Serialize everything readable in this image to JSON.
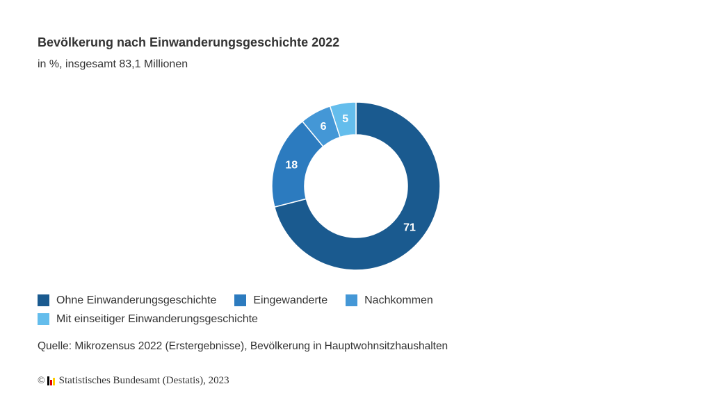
{
  "header": {
    "title": "Bevölkerung nach Einwanderungsgeschichte 2022",
    "subtitle": "in %, insgesamt 83,1 Millionen"
  },
  "chart_data": {
    "type": "pie",
    "title": "Bevölkerung nach Einwanderungsgeschichte 2022",
    "subtitle": "in %, insgesamt 83,1 Millionen",
    "donut": true,
    "legend_position": "bottom-left",
    "slices": [
      {
        "label": "Ohne Einwanderungsgeschichte",
        "value": 71,
        "value_label": "71",
        "color": "#1a5a8f"
      },
      {
        "label": "Eingewanderte",
        "value": 18,
        "value_label": "18",
        "color": "#2c7bbf"
      },
      {
        "label": "Nachkommen",
        "value": 6,
        "value_label": "6",
        "color": "#4497d6"
      },
      {
        "label": "Mit einseitiger Einwanderungsgeschichte",
        "value": 5,
        "value_label": "5",
        "color": "#64bdec"
      }
    ]
  },
  "footer": {
    "source": "Quelle: Mikrozensus 2022 (Erstergebnisse), Bevölkerung in Hauptwohnsitzhaushalten",
    "copyright_symbol": "©",
    "copyright_text": "Statistisches Bundesamt (Destatis), 2023"
  },
  "logo_colors": [
    "#000000",
    "#dd0000",
    "#ffcc00"
  ]
}
